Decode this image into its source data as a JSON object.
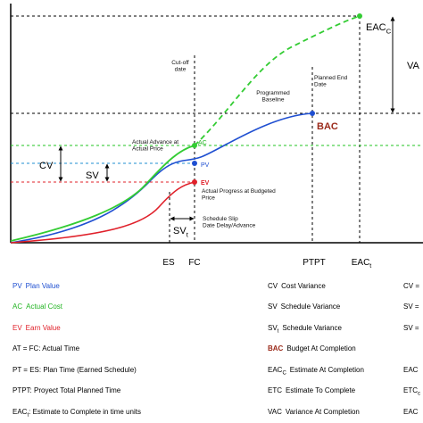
{
  "diagram": {
    "annotations": {
      "cutoff": [
        "Cut-off",
        "date"
      ],
      "planned_end": [
        "Planned End",
        "Date"
      ],
      "baseline": [
        "Programmed",
        "Baseline"
      ],
      "actual_advance": [
        "Actual Advance at",
        "Actual Price"
      ],
      "actual_progress": [
        "Actual Progress at Budgeted",
        "Price"
      ],
      "slip": [
        "Schedule Slip",
        "Date Delay/Advance"
      ]
    },
    "curve_labels": {
      "ac": "AC",
      "pv": "PV",
      "ev": "EV",
      "bac": "BAC",
      "eac": {
        "abbr": "EAC",
        "sub": "C"
      },
      "vac": "VA"
    },
    "variance_labels": {
      "cv": "CV",
      "sv": "SV",
      "svt": {
        "abbr": "SV",
        "sub": "t"
      }
    },
    "axis_labels": [
      {
        "abbr": "ES"
      },
      {
        "abbr": "FC"
      },
      {
        "abbr": "PTPT"
      },
      {
        "abbr": "EAC",
        "sub": "t"
      }
    ]
  },
  "legend": {
    "left": [
      {
        "abbr": "PV",
        "text": "Plan Value",
        "color": "#1f4fd1"
      },
      {
        "abbr": "AC",
        "text": "Actual Cost",
        "color": "#22b422"
      },
      {
        "abbr": "EV",
        "text": "Earn Value",
        "color": "#e0202a"
      },
      {
        "text": "AT = FC: Actual Time"
      },
      {
        "text": "PT = ES: Plan Time (Earned Schedule)"
      },
      {
        "text": "PTPT: Proyect Total Planned Time"
      },
      {
        "abbr": "EAC",
        "sub": "t",
        "text": ": Estimate to Complete in time units"
      }
    ],
    "middle": [
      {
        "abbr": "CV",
        "text": "Cost Variance"
      },
      {
        "abbr": "SV",
        "text": "Schedule Variance"
      },
      {
        "abbr": "SV",
        "sub": "t",
        "text": "Schedule Variance"
      },
      {
        "abbr": "BAC",
        "text": "Budget At Completion",
        "abbr_color": "#9b2a1a"
      },
      {
        "abbr": "EAC",
        "sub": "C",
        "text": "Estimate At Completion"
      },
      {
        "abbr": "ETC",
        "text": "Estimate To Complete"
      },
      {
        "abbr": "VAC",
        "text": "Variance At Completion"
      }
    ],
    "right": [
      {
        "text": "CV ="
      },
      {
        "text": "SV ="
      },
      {
        "text": "SV ="
      },
      null,
      {
        "abbr": "EAC"
      },
      {
        "abbr": "ETC",
        "sub": "c"
      },
      {
        "abbr": "EAC"
      }
    ]
  }
}
